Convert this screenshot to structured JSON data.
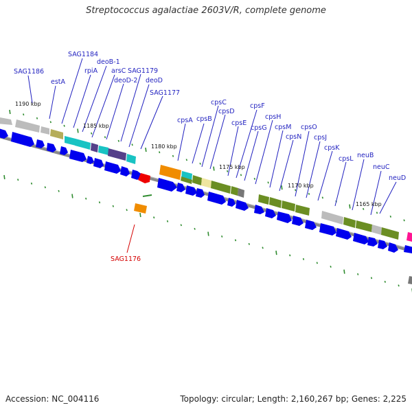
{
  "title": "Streptococcus agalactiae 2603V/R, complete genome",
  "footer": {
    "accession": "Accession: NC_004116",
    "summary": "Topology: circular; Length: 2,160,267 bp; Genes: 2,225"
  },
  "colors": {
    "label": "#1f1fbf",
    "highlight_label": "#d40000",
    "backbone": "#777777",
    "tick": "#2e8b2e",
    "cds": "#0000ee",
    "gray": "#b5b5b5",
    "olive": "#6b8e23",
    "cyan": "#19c3c3",
    "purple": "#55408a",
    "orange": "#f08c00",
    "khaki": "#efe6a0",
    "red": "#ee0000",
    "magenta": "#ff1493"
  },
  "kbp_marks": [
    "1190 kbp",
    "1185 kbp",
    "1180 kbp",
    "1175 kbp",
    "1170 kbp",
    "1165 kbp"
  ],
  "genes": [
    "SAG1186",
    "estA",
    "SAG1184",
    "rpiA",
    "deoB-1",
    "arsC",
    "deoD-2",
    "SAG1179",
    "deoD",
    "SAG1177",
    "cpsA",
    "cpsB",
    "cpsC",
    "cpsD",
    "cpsE",
    "cpsF",
    "cpsG",
    "cpsH",
    "cpsM",
    "cpsN",
    "cpsO",
    "cpsJ",
    "cpsK",
    "cpsL",
    "neuB",
    "neuC",
    "neuD"
  ],
  "highlight_gene": "SAG1176"
}
